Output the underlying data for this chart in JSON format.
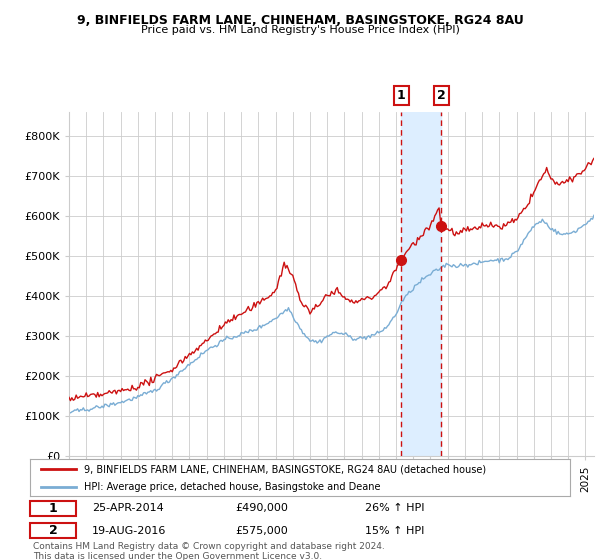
{
  "title1": "9, BINFIELDS FARM LANE, CHINEHAM, BASINGSTOKE, RG24 8AU",
  "title2": "Price paid vs. HM Land Registry's House Price Index (HPI)",
  "ylabel_ticks": [
    "£0",
    "£100K",
    "£200K",
    "£300K",
    "£400K",
    "£500K",
    "£600K",
    "£700K",
    "£800K"
  ],
  "ytick_vals": [
    0,
    100000,
    200000,
    300000,
    400000,
    500000,
    600000,
    700000,
    800000
  ],
  "ylim": [
    0,
    860000
  ],
  "xlim_start": 1995.0,
  "xlim_end": 2025.5,
  "hpi_color": "#7aadd4",
  "price_color": "#cc1111",
  "shade_color": "#ddeeff",
  "marker1_date": 2014.31,
  "marker1_price": 490000,
  "marker1_label": "25-APR-2014",
  "marker1_amount": "£490,000",
  "marker1_pct": "26% ↑ HPI",
  "marker2_date": 2016.63,
  "marker2_price": 575000,
  "marker2_label": "19-AUG-2016",
  "marker2_amount": "£575,000",
  "marker2_pct": "15% ↑ HPI",
  "legend_line1": "9, BINFIELDS FARM LANE, CHINEHAM, BASINGSTOKE, RG24 8AU (detached house)",
  "legend_line2": "HPI: Average price, detached house, Basingstoke and Deane",
  "footnote": "Contains HM Land Registry data © Crown copyright and database right 2024.\nThis data is licensed under the Open Government Licence v3.0.",
  "background_color": "#ffffff",
  "grid_color": "#cccccc"
}
